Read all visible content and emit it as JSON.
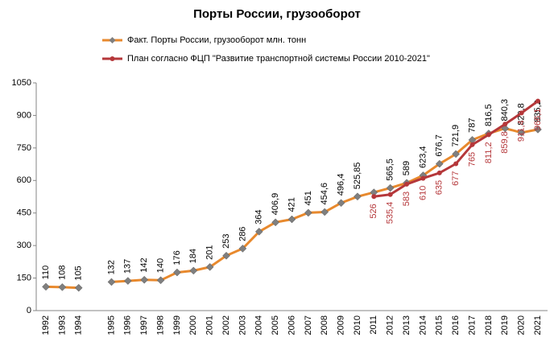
{
  "chart_data": {
    "type": "line",
    "title": "Порты России, грузооборот",
    "categories": [
      "1992",
      "1993",
      "1994",
      null,
      "1995",
      "1996",
      "1997",
      "1998",
      "1999",
      "2000",
      "2001",
      "2002",
      "2003",
      "2004",
      "2005",
      "2006",
      "2007",
      "2008",
      "2009",
      "2010",
      "2011",
      "2012",
      "2013",
      "2014",
      "2015",
      "2016",
      "2017",
      "2018",
      "2019",
      "2020",
      "2021"
    ],
    "series": [
      {
        "name": "Факт. Порты России, грузооборот млн. тонн",
        "color": "#e8892d",
        "marker_color": "#7f7f7f",
        "values": [
          110,
          108,
          105,
          null,
          132,
          137,
          142,
          140,
          176,
          184,
          201,
          253,
          286,
          364,
          406.9,
          421,
          451,
          454.6,
          496.4,
          525.85,
          545,
          565.5,
          589,
          623.4,
          676.7,
          721.9,
          787,
          816.5,
          840.3,
          820.8,
          835.2
        ],
        "value_labels": [
          "110",
          "108",
          "105",
          null,
          "132",
          "137",
          "142",
          "140",
          "176",
          "184",
          "201",
          "253",
          "286",
          "364",
          "406,9",
          "421",
          "451",
          "454,6",
          "496,4",
          "525,85",
          null,
          "565,5",
          "589",
          "623,4",
          "676,7",
          "721,9",
          "787",
          "816,5",
          "840,3",
          "820,8",
          "835,2"
        ]
      },
      {
        "name": "План согласно ФЦП \"Развитие транспортной системы России 2010-2021\"",
        "color": "#b5373a",
        "marker_color": "#b5373a",
        "values": [
          null,
          null,
          null,
          null,
          null,
          null,
          null,
          null,
          null,
          null,
          null,
          null,
          null,
          null,
          null,
          null,
          null,
          null,
          null,
          null,
          526,
          535.4,
          583,
          610,
          635,
          677,
          765,
          811.2,
          859.8,
          911.4,
          966.1
        ],
        "value_labels": [
          null,
          null,
          null,
          null,
          null,
          null,
          null,
          null,
          null,
          null,
          null,
          null,
          null,
          null,
          null,
          null,
          null,
          null,
          null,
          null,
          "526",
          "535,4",
          "583",
          "610",
          "635",
          "677",
          "765",
          "811,2",
          "859,8",
          "911,4",
          "966,1"
        ]
      }
    ],
    "ylim": [
      0,
      1050
    ],
    "yticks": [
      0,
      150,
      300,
      450,
      600,
      750,
      900,
      1050
    ],
    "grid": false
  }
}
